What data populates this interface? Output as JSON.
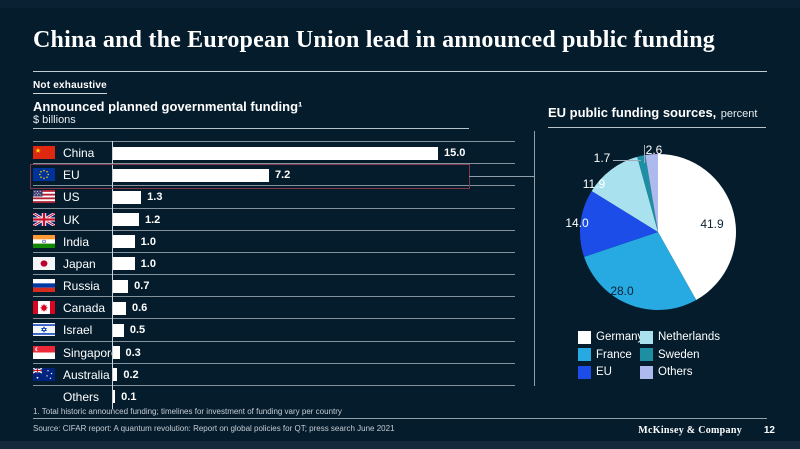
{
  "slide": {
    "title": "China and the European Union lead in announced public funding",
    "tag": "Not exhaustive",
    "footnote": "1. Total historic announced funding; timelines for investment of funding vary per country",
    "source": "Source: CIFAR report: A quantum revolution: Report on global policies for QT; press search June 2021",
    "brand": "McKinsey & Company",
    "page_number": "12"
  },
  "chart_data": [
    {
      "type": "bar",
      "orientation": "horizontal",
      "title": "Announced planned governmental funding¹",
      "subtitle": "$ billions",
      "categories": [
        "China",
        "EU",
        "US",
        "UK",
        "India",
        "Japan",
        "Russia",
        "Canada",
        "Israel",
        "Singapore",
        "Australia",
        "Others"
      ],
      "values": [
        15.0,
        7.2,
        1.3,
        1.2,
        1.0,
        1.0,
        0.7,
        0.6,
        0.5,
        0.3,
        0.2,
        0.1
      ],
      "value_labels": [
        "15.0",
        "7.2",
        "1.3",
        "1.2",
        "1.0",
        "1.0",
        "0.7",
        "0.6",
        "0.5",
        "0.3",
        "0.2",
        "0.1"
      ],
      "flag_icons": [
        "china-flag-icon",
        "eu-flag-icon",
        "us-flag-icon",
        "uk-flag-icon",
        "india-flag-icon",
        "japan-flag-icon",
        "russia-flag-icon",
        "canada-flag-icon",
        "israel-flag-icon",
        "singapore-flag-icon",
        "australia-flag-icon",
        null
      ],
      "bar_color": "#ffffff",
      "xlim": [
        0,
        15.5
      ],
      "grid": false,
      "highlighted_category": "EU",
      "highlight_border_color": "#82394a"
    },
    {
      "type": "pie",
      "title": "EU public funding sources,",
      "subtitle": "percent",
      "labels": [
        "Germany",
        "France",
        "EU",
        "Netherlands",
        "Sweden",
        "Others"
      ],
      "values": [
        41.9,
        28.0,
        14.0,
        11.9,
        1.7,
        2.6
      ],
      "value_labels": [
        "41.9",
        "28.0",
        "14.0",
        "11.9",
        "1.7",
        "2.6"
      ],
      "colors": [
        "#ffffff",
        "#27a9e1",
        "#1d4de9",
        "#a9e2ee",
        "#1e8fa3",
        "#aeb9ee"
      ],
      "start_angle_deg": 0,
      "direction": "clockwise",
      "legend_position": "bottom-left"
    }
  ],
  "theme": {
    "background": "#051c2c",
    "text": "#ffffff",
    "muted_text": "#c6cdd3",
    "line": "#8fa0ac",
    "dark_label": "#0a2336"
  }
}
